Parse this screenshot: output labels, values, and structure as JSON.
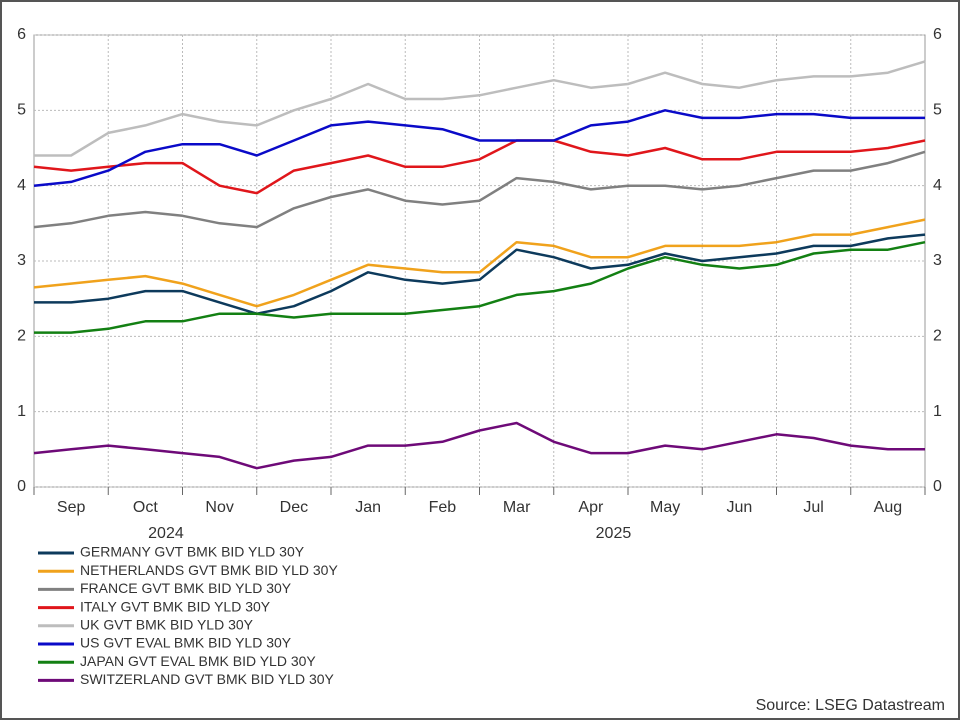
{
  "chart_data": {
    "type": "line",
    "categories": [
      null,
      "Sep",
      null,
      "Oct",
      null,
      "Nov",
      null,
      "Dec",
      null,
      "Jan",
      null,
      "Feb",
      null,
      "Mar",
      null,
      "Apr",
      null,
      "May",
      null,
      "Jun",
      null,
      "Jul",
      null,
      "Aug",
      null
    ],
    "x_groups": [
      "2024",
      "2025"
    ],
    "ylim": [
      0,
      6
    ],
    "yticks": [
      0,
      1,
      2,
      3,
      4,
      5,
      6
    ],
    "grid": true,
    "series": [
      {
        "name": "GERMANY GVT BMK BID YLD 30Y",
        "color": "#0d3a5c",
        "values": [
          2.45,
          2.45,
          2.5,
          2.6,
          2.6,
          2.45,
          2.3,
          2.4,
          2.6,
          2.85,
          2.75,
          2.7,
          2.75,
          3.15,
          3.05,
          2.9,
          2.95,
          3.1,
          3.0,
          3.05,
          3.1,
          3.2,
          3.2,
          3.3,
          3.35
        ]
      },
      {
        "name": "NETHERLANDS GVT BMK BID YLD 30Y",
        "color": "#f0a21c",
        "values": [
          2.65,
          2.7,
          2.75,
          2.8,
          2.7,
          2.55,
          2.4,
          2.55,
          2.75,
          2.95,
          2.9,
          2.85,
          2.85,
          3.25,
          3.2,
          3.05,
          3.05,
          3.2,
          3.2,
          3.2,
          3.25,
          3.35,
          3.35,
          3.45,
          3.55
        ]
      },
      {
        "name": "FRANCE GVT BMK BID YLD 30Y",
        "color": "#808080",
        "values": [
          3.45,
          3.5,
          3.6,
          3.65,
          3.6,
          3.5,
          3.45,
          3.7,
          3.85,
          3.95,
          3.8,
          3.75,
          3.8,
          4.1,
          4.05,
          3.95,
          4.0,
          4.0,
          3.95,
          4.0,
          4.1,
          4.2,
          4.2,
          4.3,
          4.45
        ]
      },
      {
        "name": "ITALY GVT BMK BID YLD 30Y",
        "color": "#e0161b",
        "values": [
          4.25,
          4.2,
          4.25,
          4.3,
          4.3,
          4.0,
          3.9,
          4.2,
          4.3,
          4.4,
          4.25,
          4.25,
          4.35,
          4.6,
          4.6,
          4.45,
          4.4,
          4.5,
          4.35,
          4.35,
          4.45,
          4.45,
          4.45,
          4.5,
          4.6
        ]
      },
      {
        "name": "UK GVT BMK BID YLD 30Y",
        "color": "#bdbdbd",
        "values": [
          4.4,
          4.4,
          4.7,
          4.8,
          4.95,
          4.85,
          4.8,
          5.0,
          5.15,
          5.35,
          5.15,
          5.15,
          5.2,
          5.3,
          5.4,
          5.3,
          5.35,
          5.5,
          5.35,
          5.3,
          5.4,
          5.45,
          5.45,
          5.5,
          5.65
        ]
      },
      {
        "name": "US GVT EVAL BMK BID YLD 30Y",
        "color": "#0a0ac8",
        "values": [
          4.0,
          4.05,
          4.2,
          4.45,
          4.55,
          4.55,
          4.4,
          4.6,
          4.8,
          4.85,
          4.8,
          4.75,
          4.6,
          4.6,
          4.6,
          4.8,
          4.85,
          5.0,
          4.9,
          4.9,
          4.95,
          4.95,
          4.9,
          4.9,
          4.9
        ]
      },
      {
        "name": "JAPAN GVT EVAL BMK BID YLD 30Y",
        "color": "#138013",
        "values": [
          2.05,
          2.05,
          2.1,
          2.2,
          2.2,
          2.3,
          2.3,
          2.25,
          2.3,
          2.3,
          2.3,
          2.35,
          2.4,
          2.55,
          2.6,
          2.7,
          2.9,
          3.05,
          2.95,
          2.9,
          2.95,
          3.1,
          3.15,
          3.15,
          3.25
        ]
      },
      {
        "name": "SWITZERLAND GVT BMK BID YLD 30Y",
        "color": "#6e0a78",
        "values": [
          0.45,
          0.5,
          0.55,
          0.5,
          0.45,
          0.4,
          0.25,
          0.35,
          0.4,
          0.55,
          0.55,
          0.6,
          0.75,
          0.85,
          0.6,
          0.45,
          0.45,
          0.55,
          0.5,
          0.6,
          0.7,
          0.65,
          0.55,
          0.5,
          0.5
        ]
      }
    ],
    "source": "Source: LSEG Datastream"
  }
}
